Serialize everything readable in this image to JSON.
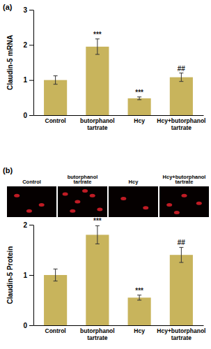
{
  "chart_data": [
    {
      "type": "bar",
      "title": "(a)",
      "y_label": "Claudin-5 mRNA",
      "categories": [
        "Control",
        "butorphanol tartrate",
        "Hcy",
        "Hcy+butorphanol tartrate"
      ],
      "values": [
        1.0,
        1.95,
        0.48,
        1.08
      ],
      "errors": [
        0.12,
        0.22,
        0.04,
        0.12
      ],
      "annotations": [
        null,
        "***",
        "***",
        "##"
      ],
      "color": "#c8b45c",
      "ylim": [
        0,
        3
      ],
      "yticks": [
        0,
        1,
        2,
        3
      ],
      "grid": false
    },
    {
      "type": "bar",
      "title": "(b)",
      "y_label": "Claudin-5 Protein",
      "categories": [
        "Control",
        "butorphanol tartrate",
        "Hcy",
        "Hcy+butorphanol tartrate"
      ],
      "values": [
        1.0,
        1.8,
        0.55,
        1.4
      ],
      "errors": [
        0.12,
        0.18,
        0.05,
        0.15
      ],
      "annotations": [
        null,
        "***",
        "***",
        "##"
      ],
      "color": "#c8b45c",
      "ylim": [
        0,
        2
      ],
      "yticks": [
        0,
        1,
        2
      ],
      "grid": false
    }
  ]
}
